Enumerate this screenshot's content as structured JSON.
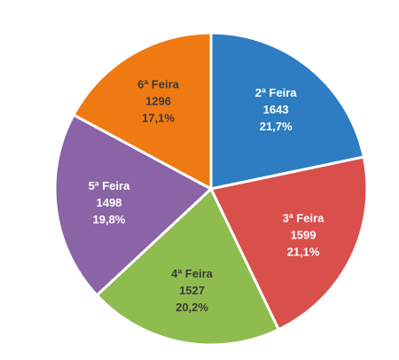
{
  "chart_data": {
    "type": "pie",
    "title": "",
    "categories": [
      "2ª Feira",
      "3ª Feira",
      "4ª Feira",
      "5ª Feira",
      "6ª Feira"
    ],
    "values": [
      1643,
      1599,
      1527,
      1498,
      1296
    ],
    "percent_labels": [
      "21,7%",
      "21,1%",
      "20,2%",
      "19,8%",
      "17,1%"
    ],
    "value_labels": [
      "1643",
      "1599",
      "1527",
      "1498",
      "1296"
    ],
    "colors": [
      "#2e7dc2",
      "#d84f4c",
      "#8fbc4f",
      "#8a64a6",
      "#f07a12"
    ],
    "label_colors": [
      "#ffffff",
      "#ffffff",
      "#3a3a3a",
      "#ffffff",
      "#3a3a3a"
    ],
    "legend": "none",
    "start_angle_deg": 0,
    "direction": "clockwise"
  }
}
